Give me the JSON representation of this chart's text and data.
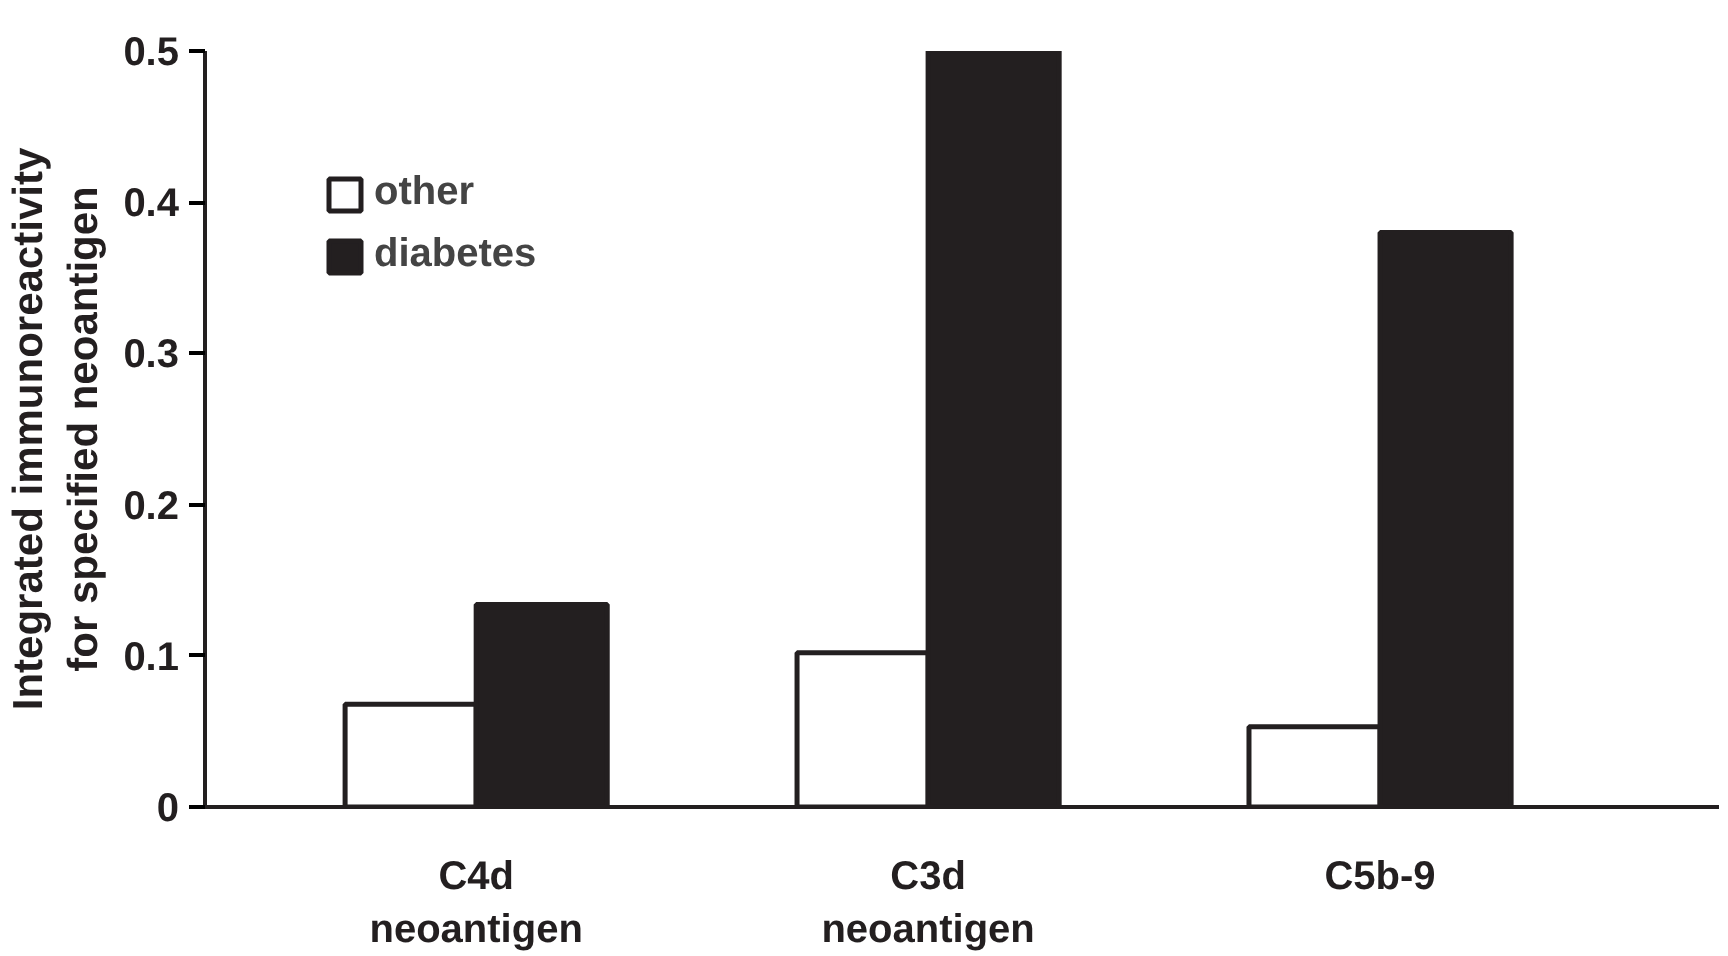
{
  "chart_data": {
    "type": "bar",
    "ylabel": "Integrated immunoreactivity\nfor specified neoantigen",
    "categories": [
      "C4d neoantigen",
      "C3d neoantigen",
      "C5b-9"
    ],
    "series": [
      {
        "name": "other",
        "color": "#ffffff",
        "values": [
          0.068,
          0.102,
          0.053
        ]
      },
      {
        "name": "diabetes",
        "color": "#231f20",
        "values": [
          0.134,
          0.5,
          0.38
        ]
      }
    ],
    "ylim": [
      0,
      0.5
    ],
    "yticks": [
      0,
      0.1,
      0.2,
      0.3,
      0.4,
      0.5
    ],
    "grid": false,
    "legend": "top left"
  }
}
